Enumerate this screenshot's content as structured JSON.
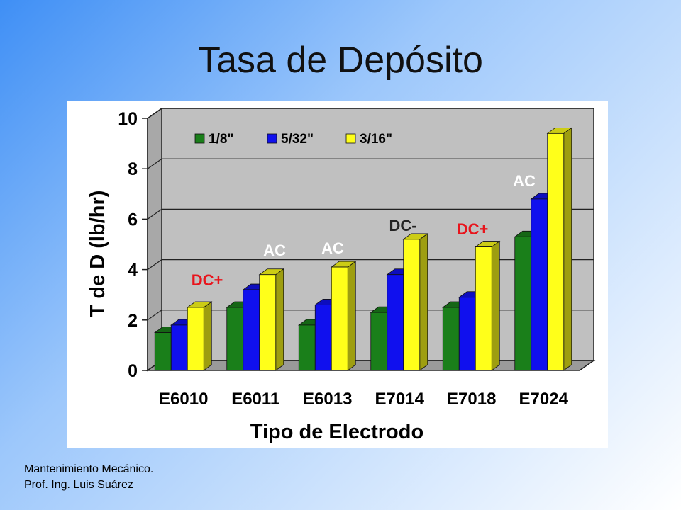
{
  "slide": {
    "title": "Tasa de Depósito",
    "footer_line1": "Mantenimiento Mecánico.",
    "footer_line2": "Prof. Ing. Luis Suárez"
  },
  "colors": {
    "series": [
      "#1a7f1a",
      "#1010ee",
      "#ffff1a"
    ],
    "wall": "#c0c0c0",
    "annotation_red": "#e8141c",
    "annotation_gray": "#222222"
  },
  "chart_data": {
    "type": "bar",
    "title": "",
    "xlabel": "Tipo de Electrodo",
    "ylabel": "T de D (lb/hr)",
    "ylim": [
      0,
      10
    ],
    "yticks": [
      0,
      2,
      4,
      6,
      8,
      10
    ],
    "categories": [
      "E6010",
      "E6011",
      "E6013",
      "E7014",
      "E7018",
      "E7024"
    ],
    "series": [
      {
        "name": "1/8\"",
        "values": [
          1.5,
          2.5,
          1.8,
          2.3,
          2.5,
          5.3
        ]
      },
      {
        "name": "5/32\"",
        "values": [
          1.8,
          3.2,
          2.6,
          3.8,
          2.9,
          6.8
        ]
      },
      {
        "name": "3/16\"",
        "values": [
          2.5,
          3.8,
          4.1,
          5.2,
          4.9,
          9.4
        ]
      }
    ],
    "annotations": [
      {
        "text": "DC+",
        "category": "E6010",
        "color": "red"
      },
      {
        "text": "AC",
        "category": "E6011",
        "color": "white"
      },
      {
        "text": "AC",
        "category": "E6013",
        "color": "white"
      },
      {
        "text": "DC-",
        "category": "E7014",
        "color": "gray"
      },
      {
        "text": "DC+",
        "category": "E7018",
        "color": "red"
      },
      {
        "text": "AC",
        "category": "E7024",
        "color": "white"
      }
    ],
    "legend_position": "top",
    "grid": true
  }
}
